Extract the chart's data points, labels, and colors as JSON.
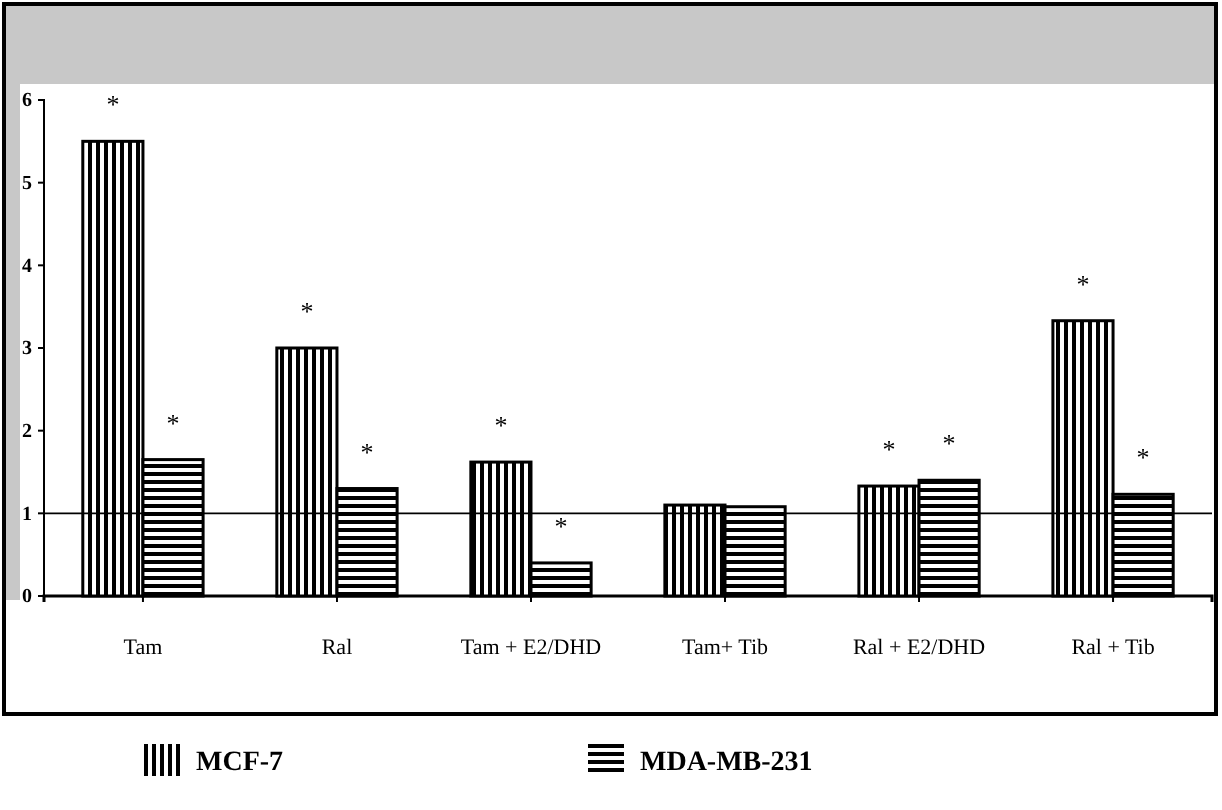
{
  "chart_data": {
    "type": "bar",
    "categories": [
      "Tam",
      "Ral",
      "Tam + E2/DHD",
      "Tam+ Tib",
      "Ral + E2/DHD",
      "Ral + Tib"
    ],
    "series": [
      {
        "name": "MCF-7",
        "color": "#000000",
        "values": [
          5.5,
          3.0,
          1.62,
          1.1,
          1.33,
          3.33
        ],
        "value_labels": [
          "*",
          "*",
          "*",
          null,
          "*",
          "*"
        ]
      },
      {
        "name": "MDA-MB-231",
        "color": "#000000",
        "values": [
          1.65,
          1.3,
          0.4,
          1.08,
          1.4,
          1.23
        ],
        "value_labels": [
          "*",
          "*",
          "*",
          null,
          "*",
          "*"
        ]
      }
    ],
    "ylim": [
      0,
      6
    ],
    "yticks": [
      0,
      1,
      2,
      3,
      4,
      5,
      6
    ],
    "ref_lines": [
      {
        "axis": "y",
        "value": 1,
        "color": "#000000"
      }
    ],
    "legend": "bottom",
    "grid": false
  }
}
